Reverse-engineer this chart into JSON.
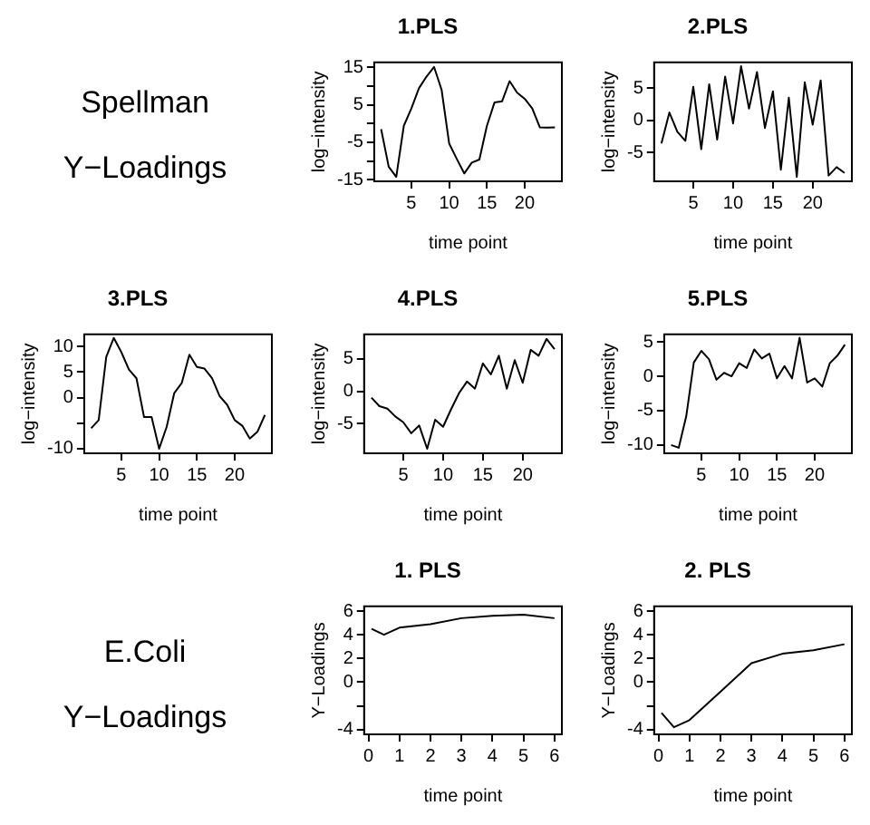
{
  "chart_data": [
    {
      "type": "other",
      "title": "Spellman",
      "subtitle": "Y−Loadings"
    },
    {
      "type": "line",
      "title": "1.PLS",
      "xlabel": "time point",
      "ylabel": "log−intensity",
      "x": [
        1,
        2,
        3,
        4,
        5,
        6,
        7,
        8,
        9,
        10,
        11,
        12,
        13,
        14,
        15,
        16,
        17,
        18,
        19,
        20,
        21,
        22,
        23,
        24
      ],
      "values": [
        -1.5,
        -11.5,
        -14.2,
        -0.6,
        4,
        9.4,
        12.5,
        15.1,
        9,
        -5.3,
        -9.4,
        -13.3,
        -10.4,
        -9.6,
        -0.6,
        5.6,
        5.9,
        11.3,
        8.2,
        6.6,
        4,
        -1,
        -1.1,
        -1
      ],
      "color": "#000000",
      "xlim": [
        0.08,
        24.92
      ],
      "ylim": [
        -15.4,
        16.3
      ],
      "xticks": [
        5,
        10,
        15,
        20
      ],
      "yticks": [
        -15,
        {
          "value": -10,
          "label": null
        },
        -5,
        {
          "value": 0,
          "label": null
        },
        5,
        {
          "value": 10,
          "label": null
        },
        15
      ]
    },
    {
      "type": "line",
      "title": "2.PLS",
      "xlabel": "time point",
      "ylabel": "log−intensity",
      "x": [
        1,
        2,
        3,
        4,
        5,
        6,
        7,
        8,
        9,
        10,
        11,
        12,
        13,
        14,
        15,
        16,
        17,
        18,
        19,
        20,
        21,
        22,
        23,
        24
      ],
      "values": [
        -3.6,
        1.2,
        -1.8,
        -3.2,
        5.2,
        -4.5,
        5.6,
        -3,
        6.8,
        -0.5,
        8.4,
        1.8,
        7.5,
        -1.2,
        4.5,
        -7.7,
        3.5,
        -8.8,
        5.9,
        -0.7,
        6.2,
        -8.6,
        -7.3,
        -8.2
      ],
      "color": "#000000",
      "xlim": [
        0.08,
        24.92
      ],
      "ylim": [
        -9.5,
        9
      ],
      "xticks": [
        5,
        10,
        15,
        20
      ],
      "yticks": [
        -5,
        0,
        5
      ]
    },
    {
      "type": "line",
      "title": "3.PLS",
      "xlabel": "time point",
      "ylabel": "log−intensity",
      "x": [
        1,
        2,
        3,
        4,
        5,
        6,
        7,
        8,
        9,
        10,
        11,
        12,
        13,
        14,
        15,
        16,
        17,
        18,
        19,
        20,
        21,
        22,
        23,
        24
      ],
      "values": [
        -6,
        -4.4,
        8,
        11.7,
        8.9,
        5.5,
        3.8,
        -3.8,
        -3.8,
        -10,
        -5.7,
        0.9,
        2.9,
        8.4,
        6,
        5.7,
        3.8,
        0.3,
        -1.4,
        -4.4,
        -5.5,
        -8,
        -6.7,
        -3.4
      ],
      "color": "#000000",
      "xlim": [
        0.08,
        24.92
      ],
      "ylim": [
        -10.9,
        12.4
      ],
      "xticks": [
        5,
        10,
        15,
        20
      ],
      "yticks": [
        -10,
        {
          "value": -5,
          "label": null
        },
        0,
        5,
        10
      ]
    },
    {
      "type": "line",
      "title": "4.PLS",
      "xlabel": "time point",
      "ylabel": "log−intensity",
      "x": [
        1,
        2,
        3,
        4,
        5,
        6,
        7,
        8,
        9,
        10,
        11,
        12,
        13,
        14,
        15,
        16,
        17,
        18,
        19,
        20,
        21,
        22,
        23,
        24
      ],
      "values": [
        -1,
        -2.3,
        -2.7,
        -3.9,
        -4.8,
        -6.5,
        -5.3,
        -8.9,
        -4.4,
        -5.5,
        -2.8,
        -0.3,
        1.5,
        0.4,
        4.3,
        2.6,
        5.5,
        0.4,
        4.8,
        1.3,
        6.4,
        5.5,
        8.1,
        6.5
      ],
      "color": "#000000",
      "xlim": [
        0.08,
        24.92
      ],
      "ylim": [
        -9.6,
        8.8
      ],
      "xticks": [
        5,
        10,
        15,
        20
      ],
      "yticks": [
        -5,
        0,
        5
      ]
    },
    {
      "type": "line",
      "title": "5.PLS",
      "xlabel": "time point",
      "ylabel": "log−intensity",
      "x": [
        1,
        2,
        3,
        4,
        5,
        6,
        7,
        8,
        9,
        10,
        11,
        12,
        13,
        14,
        15,
        16,
        17,
        18,
        19,
        20,
        21,
        22,
        23,
        24
      ],
      "values": [
        -10,
        -10.4,
        -5.8,
        2,
        3.7,
        2.5,
        -0.5,
        0.5,
        0,
        1.9,
        1.2,
        3.9,
        2.6,
        3.3,
        -0.3,
        1.5,
        -0.3,
        5.6,
        -0.9,
        -0.3,
        -1.5,
        1.9,
        3,
        4.6
      ],
      "color": "#000000",
      "xlim": [
        0.08,
        24.92
      ],
      "ylim": [
        -11.2,
        6.1
      ],
      "xticks": [
        5,
        10,
        15,
        20
      ],
      "yticks": [
        -10,
        -5,
        0,
        5
      ]
    },
    {
      "type": "other",
      "title": "E.Coli",
      "subtitle": "Y−Loadings"
    },
    {
      "type": "line",
      "title": "1. PLS",
      "xlabel": "time point",
      "ylabel": "Y−Loadings",
      "x": [
        0.1,
        0.5,
        1,
        2,
        3,
        4,
        5,
        6
      ],
      "values": [
        4.5,
        4,
        4.6,
        4.9,
        5.4,
        5.6,
        5.7,
        5.4
      ],
      "color": "#000000",
      "xlim": [
        -0.14,
        6.24
      ],
      "ylim": [
        -4.4,
        6.4
      ],
      "xticks": [
        0,
        1,
        2,
        3,
        4,
        5,
        6
      ],
      "yticks": [
        -4,
        {
          "value": -2,
          "label": null
        },
        0,
        2,
        4,
        6
      ]
    },
    {
      "type": "line",
      "title": "2. PLS",
      "xlabel": "time point",
      "ylabel": "Y−Loadings",
      "x": [
        0.1,
        0.5,
        1,
        2,
        3,
        4,
        5,
        6
      ],
      "values": [
        -2.6,
        -3.8,
        -3.2,
        -0.8,
        1.6,
        2.4,
        2.7,
        3.2
      ],
      "color": "#000000",
      "xlim": [
        -0.14,
        6.24
      ],
      "ylim": [
        -4.4,
        6.4
      ],
      "xticks": [
        0,
        1,
        2,
        3,
        4,
        5,
        6
      ],
      "yticks": [
        -4,
        {
          "value": -2,
          "label": null
        },
        0,
        2,
        4,
        6
      ]
    }
  ]
}
